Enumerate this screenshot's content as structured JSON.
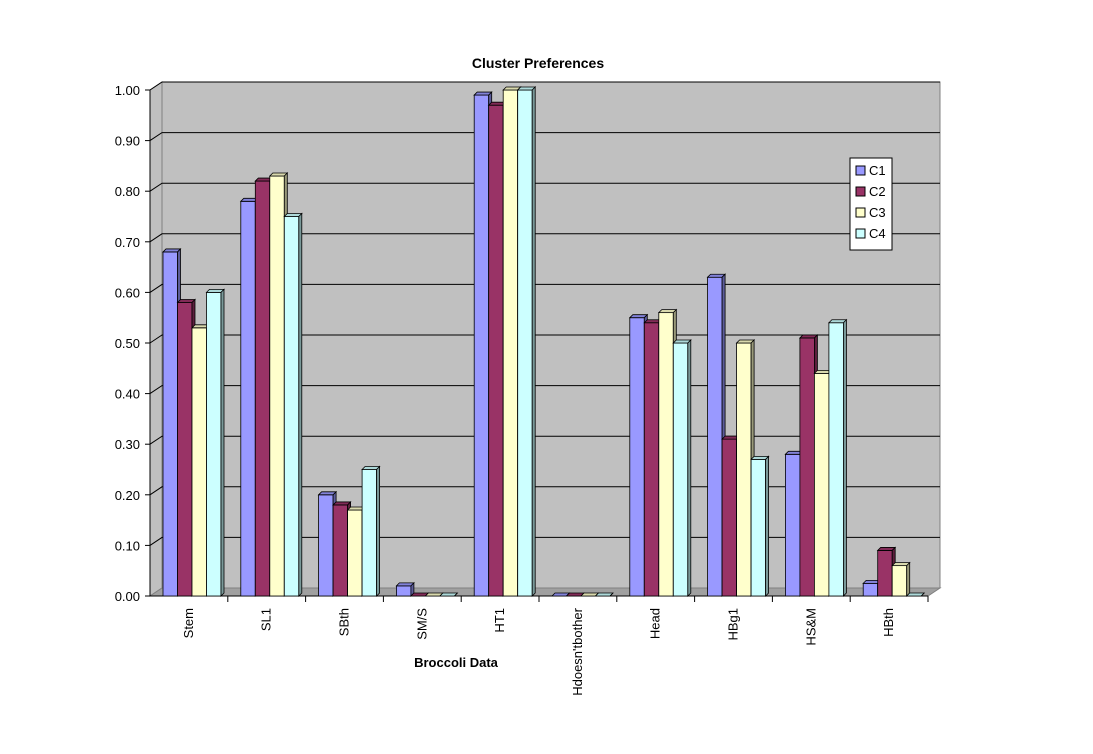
{
  "chart_data": {
    "type": "bar",
    "title": "Cluster Preferences",
    "xlabel": "Broccoli Data",
    "ylabel": "",
    "ylim": [
      0,
      1
    ],
    "yticks": [
      "0.00",
      "0.10",
      "0.20",
      "0.30",
      "0.40",
      "0.50",
      "0.60",
      "0.70",
      "0.80",
      "0.90",
      "1.00"
    ],
    "categories": [
      "Stem",
      "SL1",
      "SBth",
      "SM/S",
      "HT1",
      "Hdoesn'tbother",
      "Head",
      "HBg1",
      "HS&M",
      "HBth"
    ],
    "grid": true,
    "legend_position": "right",
    "series": [
      {
        "name": "C1",
        "color": "#9999ff",
        "values": [
          0.68,
          0.78,
          0.2,
          0.02,
          0.99,
          0.0,
          0.55,
          0.63,
          0.28,
          0.025
        ]
      },
      {
        "name": "C2",
        "color": "#993366",
        "values": [
          0.58,
          0.82,
          0.18,
          0.0,
          0.97,
          0.0,
          0.54,
          0.31,
          0.51,
          0.09
        ]
      },
      {
        "name": "C3",
        "color": "#ffffcc",
        "values": [
          0.53,
          0.83,
          0.17,
          0.0,
          1.0,
          0.0,
          0.56,
          0.5,
          0.44,
          0.06
        ]
      },
      {
        "name": "C4",
        "color": "#ccffff",
        "values": [
          0.6,
          0.75,
          0.25,
          0.0,
          1.0,
          0.0,
          0.5,
          0.27,
          0.54,
          0.0
        ]
      }
    ]
  }
}
